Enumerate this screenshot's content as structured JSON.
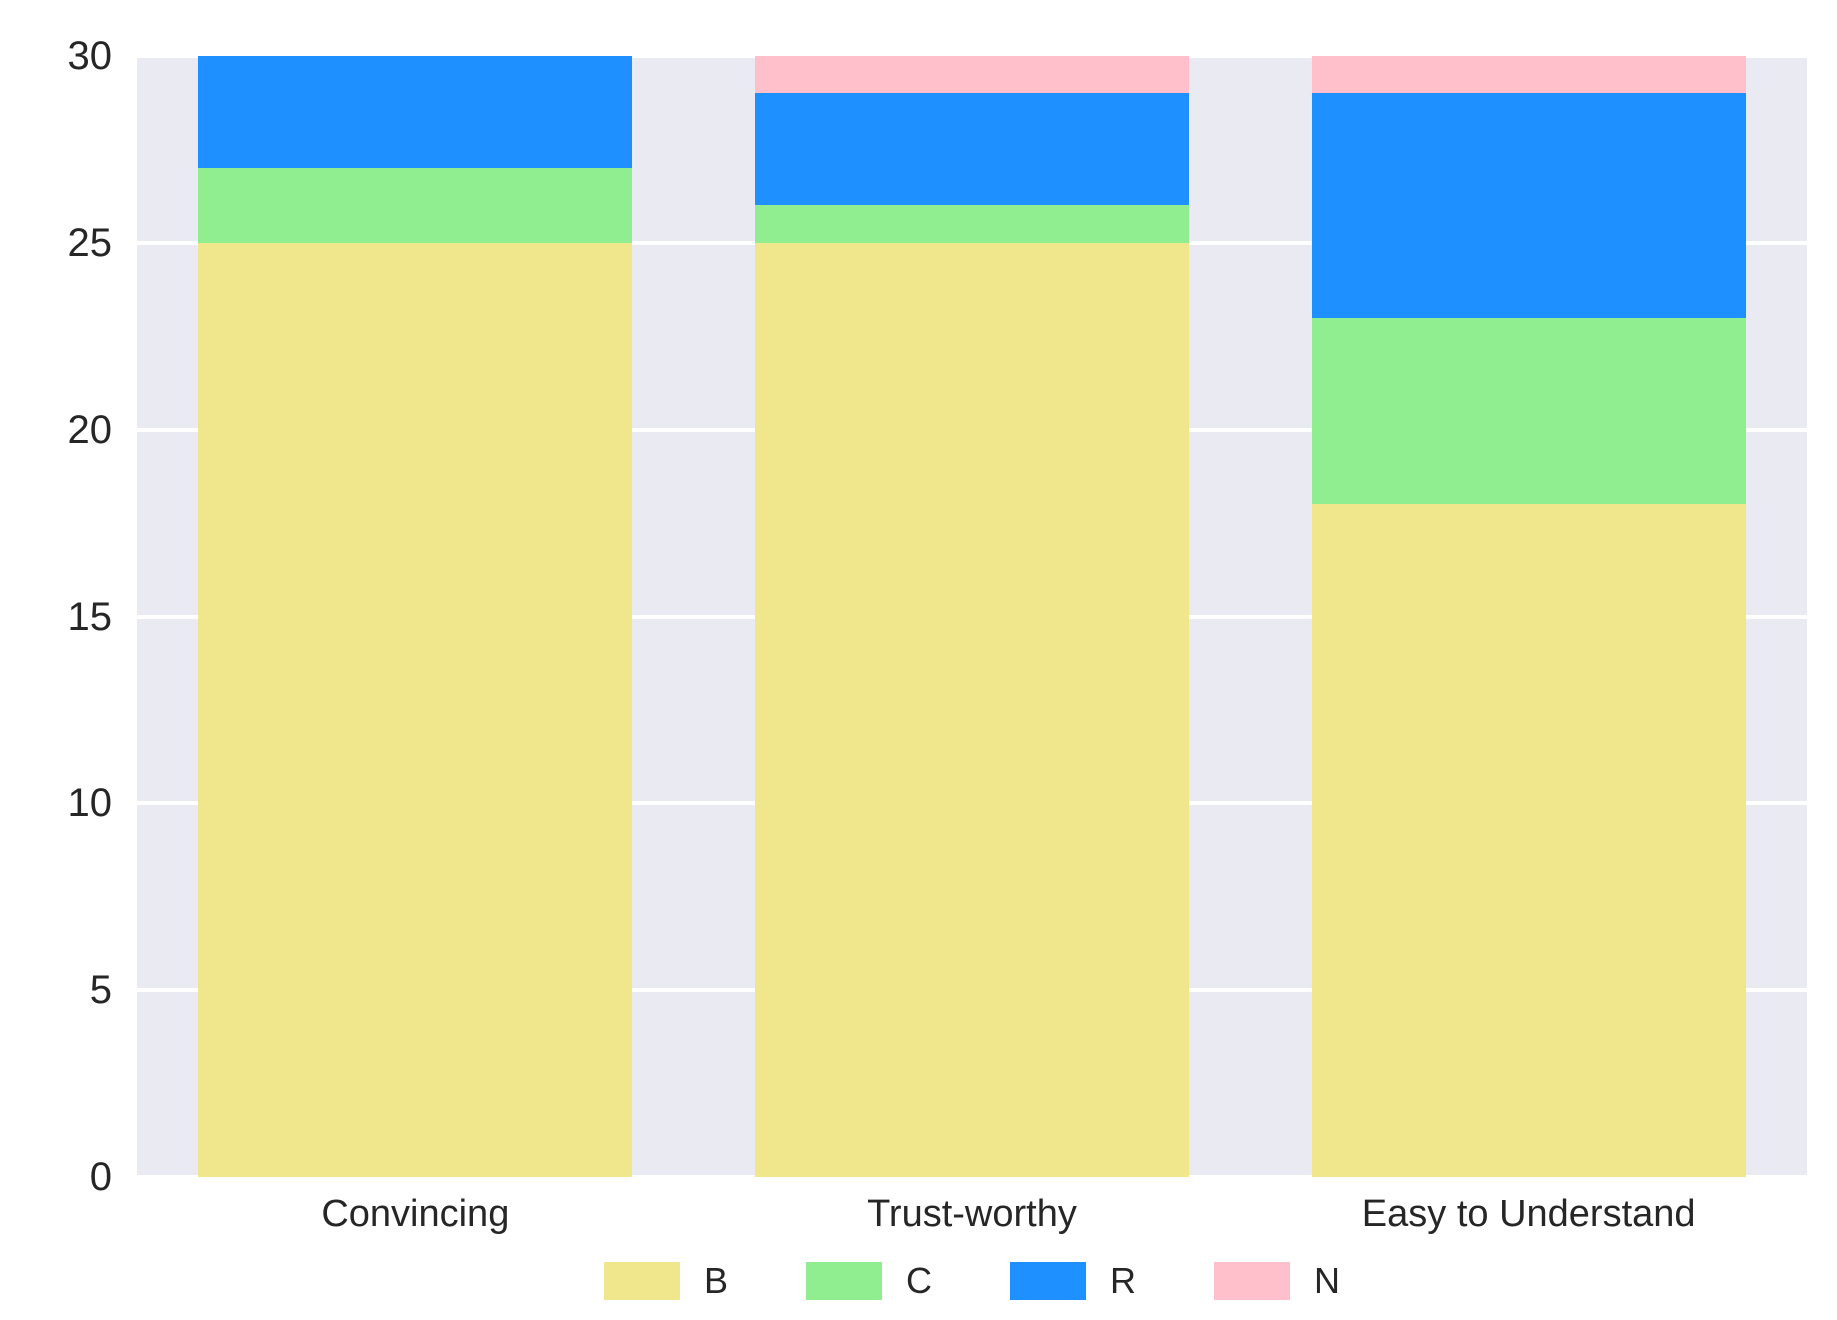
{
  "chart_data": {
    "type": "bar",
    "stacked": true,
    "title": "",
    "xlabel": "",
    "ylabel": "",
    "categories": [
      "Convincing",
      "Trust-worthy",
      "Easy to Understand"
    ],
    "series": [
      {
        "name": "B",
        "color": "#F0E68C",
        "values": [
          25,
          25,
          18
        ]
      },
      {
        "name": "C",
        "color": "#90EE90",
        "values": [
          2,
          1,
          5
        ]
      },
      {
        "name": "R",
        "color": "#1E90FF",
        "values": [
          3,
          3,
          6
        ]
      },
      {
        "name": "N",
        "color": "#FFC0CB",
        "values": [
          0,
          1,
          1
        ]
      }
    ],
    "ylim": [
      0,
      30
    ],
    "yticks": [
      0,
      5,
      10,
      15,
      20,
      25,
      30
    ],
    "grid": true,
    "gridline_color": "#FFFFFF",
    "plot_background": "#EAEAF2",
    "text_color": "#262626",
    "bar_width_ratio": 0.78,
    "legend_position": "bottom-center"
  }
}
